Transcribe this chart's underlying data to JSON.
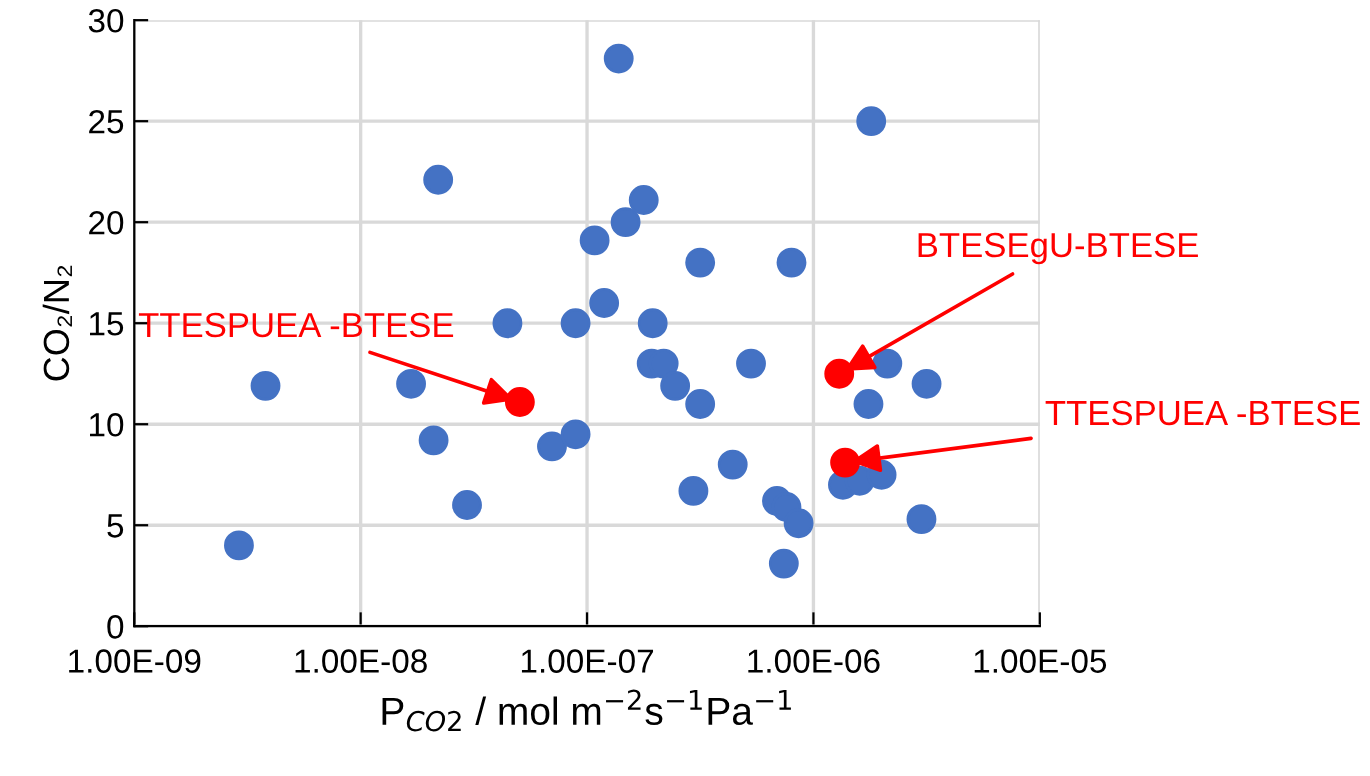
{
  "chart_data": {
    "type": "scatter",
    "xlabel": "P$_{CO2}$ / mol m$^{−2}$s$^{−1}$Pa$^{−1}$",
    "ylabel": "CO₂/N₂",
    "log": "x",
    "grid": true,
    "marker": "circle",
    "legend": false,
    "xlim": [
      1e-09,
      1e-05
    ],
    "ylim": [
      0,
      30
    ],
    "xticks": [
      {
        "value": 1e-09,
        "label": "1.00E-09"
      },
      {
        "value": 1e-08,
        "label": "1.00E-08"
      },
      {
        "value": 1e-07,
        "label": "1.00E-07"
      },
      {
        "value": 1e-06,
        "label": "1.00E-06"
      },
      {
        "value": 1e-05,
        "label": "1.00E-05"
      }
    ],
    "yticks": [
      0,
      5,
      10,
      15,
      20,
      25,
      30
    ],
    "series": [
      {
        "color": "#4472c4",
        "x": [
          2.9e-09,
          3.8e-09,
          2.2e-08,
          1.67e-08,
          2.1e-08,
          2.95e-08,
          4.45e-08,
          7e-08,
          8.9e-08,
          8.9e-08,
          1.38e-07,
          1.08e-07,
          1.19e-07,
          1.48e-07,
          1.78e-07,
          1.95e-07,
          1.93e-07,
          2.18e-07,
          2.45e-07,
          3.16e-07,
          3.16e-07,
          2.95e-07,
          4.4e-07,
          5.3e-07,
          8e-07,
          6.9e-07,
          7.6e-07,
          8.6e-07,
          7.4e-07,
          1.8e-06,
          2.12e-06,
          3.16e-06,
          1.75e-06,
          1.35e-06,
          1.6e-06,
          2e-06,
          3e-06
        ],
        "values": [
          4,
          11.9,
          22.1,
          12,
          9.2,
          6,
          15,
          8.9,
          9.5,
          15,
          28.1,
          19.1,
          16,
          20,
          21.1,
          15,
          13,
          13,
          11.9,
          18,
          11,
          6.7,
          8,
          13,
          18,
          6.2,
          5.9,
          5.1,
          3.1,
          25,
          13,
          12,
          11,
          7,
          7.2,
          7.5,
          5.3
        ]
      },
      {
        "color": "#ff0000",
        "x": [
          5.05e-08,
          1.3e-06,
          1.38e-06
        ],
        "values": [
          11.1,
          12.5,
          8.1
        ]
      }
    ],
    "annotations": [
      {
        "text": "TTESPUEA -BTESE",
        "x": 5.05e-08,
        "y": 11.1
      },
      {
        "text": "BTESEgU-BTESE",
        "x": 1.3e-06,
        "y": 12.5
      },
      {
        "text": "TTESPUEA -BTESE",
        "x": 1.38e-06,
        "y": 8.1
      }
    ]
  }
}
